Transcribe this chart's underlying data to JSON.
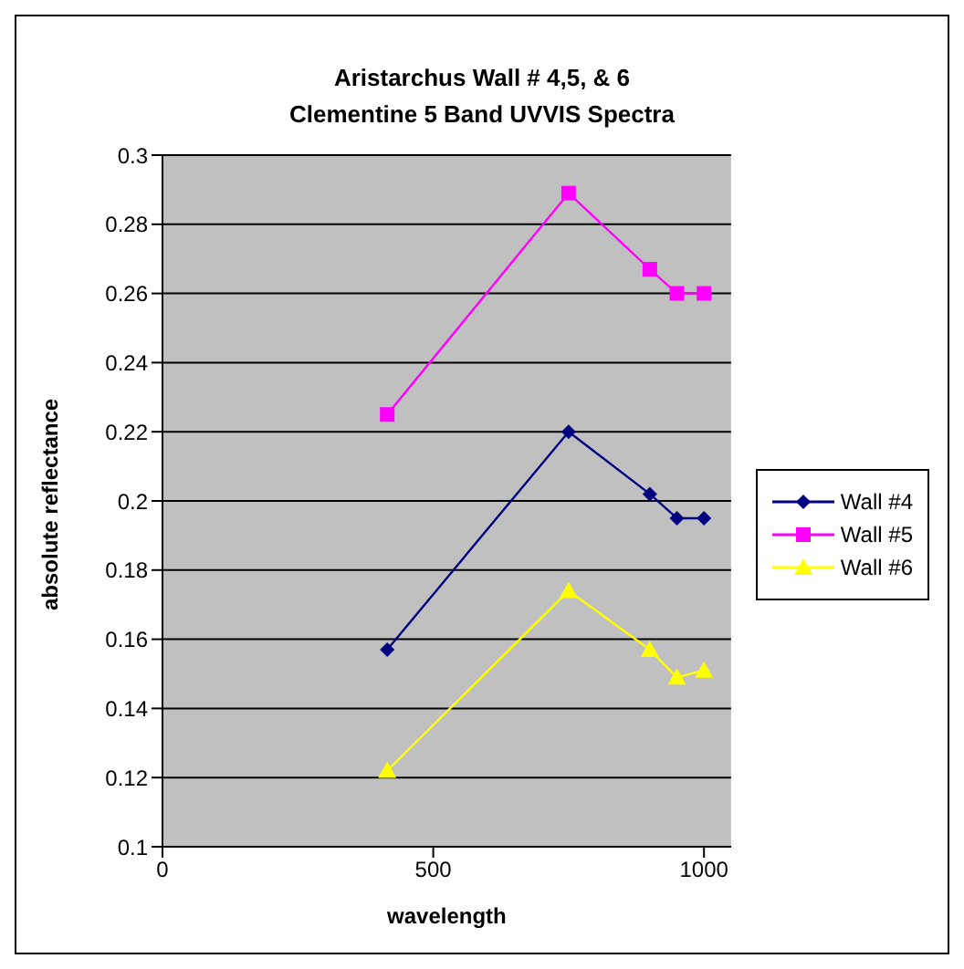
{
  "chart_data": {
    "type": "line",
    "title": "Aristarchus Wall # 4,5, & 6\nClementine 5 Band UVVIS Spectra",
    "xlabel": "wavelength",
    "ylabel": "absolute reflectance",
    "x": [
      415,
      750,
      900,
      950,
      1000
    ],
    "series": [
      {
        "name": "Wall #4",
        "color": "#000080",
        "marker": "diamond",
        "values": [
          0.157,
          0.22,
          0.202,
          0.195,
          0.195
        ]
      },
      {
        "name": "Wall #5",
        "color": "#ff00ff",
        "marker": "square",
        "values": [
          0.225,
          0.289,
          0.267,
          0.26,
          0.26
        ]
      },
      {
        "name": "Wall #6",
        "color": "#ffff00",
        "marker": "triangle",
        "values": [
          0.122,
          0.174,
          0.157,
          0.149,
          0.151
        ]
      }
    ],
    "xlim": [
      0,
      1050
    ],
    "xticks": [
      0,
      500,
      1000
    ],
    "ylim": [
      0.1,
      0.3
    ],
    "yticks": [
      0.1,
      0.12,
      0.14,
      0.16,
      0.18,
      0.2,
      0.22,
      0.24,
      0.26,
      0.28,
      0.3
    ],
    "grid": "y",
    "legend": "right",
    "line_style": "solid"
  }
}
